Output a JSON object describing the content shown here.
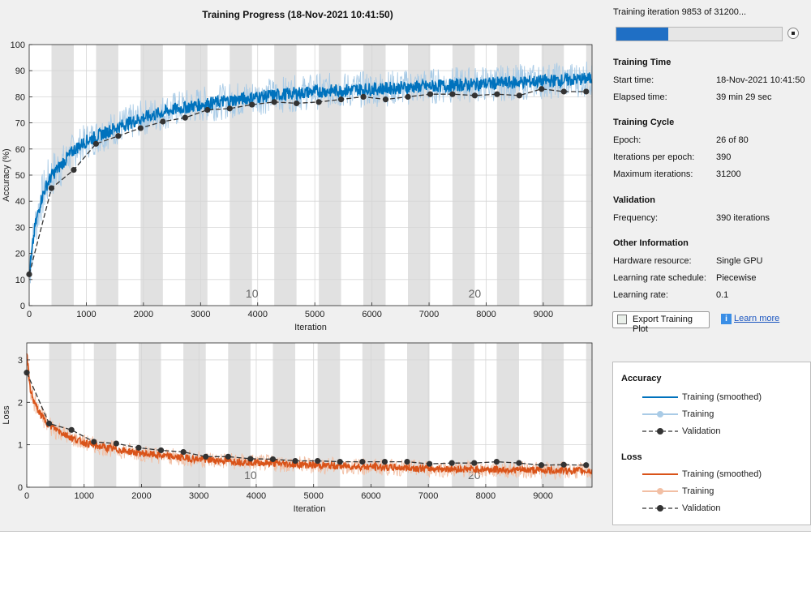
{
  "title": "Training Progress (18-Nov-2021 10:41:50)",
  "status_text": "Training iteration 9853 of 31200...",
  "progress_fraction": 0.316,
  "info_panel": {
    "training_time": {
      "header": "Training Time",
      "start_label": "Start time:",
      "start_value": "18-Nov-2021 10:41:50",
      "elapsed_label": "Elapsed time:",
      "elapsed_value": "39 min 29 sec"
    },
    "training_cycle": {
      "header": "Training Cycle",
      "epoch_label": "Epoch:",
      "epoch_value": "26 of 80",
      "ipe_label": "Iterations per epoch:",
      "ipe_value": "390",
      "max_label": "Maximum iterations:",
      "max_value": "31200"
    },
    "validation": {
      "header": "Validation",
      "freq_label": "Frequency:",
      "freq_value": "390 iterations"
    },
    "other": {
      "header": "Other Information",
      "hw_label": "Hardware resource:",
      "hw_value": "Single GPU",
      "lr_sched_label": "Learning rate schedule:",
      "lr_sched_value": "Piecewise",
      "lr_label": "Learning rate:",
      "lr_value": "0.1"
    }
  },
  "buttons": {
    "export_label": "Export Training Plot",
    "learn_more_label": "Learn more"
  },
  "legend": {
    "accuracy_header": "Accuracy",
    "loss_header": "Loss",
    "items": {
      "smoothed": "Training (smoothed)",
      "training": "Training",
      "validation": "Validation"
    }
  },
  "colors": {
    "acc_smoothed": "#0072bd",
    "acc_training": "#a9cbe6",
    "loss_smoothed": "#d95319",
    "loss_training": "#f2bfa4",
    "validation": "#333333",
    "progress": "#1f6fc5"
  },
  "icons": [
    "stop-icon",
    "export-plot-icon",
    "info-icon"
  ],
  "chart_data": [
    {
      "type": "line",
      "xlabel": "Iteration",
      "ylabel": "Accuracy (%)",
      "xlim": [
        0,
        9853
      ],
      "ylim": [
        0,
        100
      ],
      "xticks": [
        0,
        1000,
        2000,
        3000,
        4000,
        5000,
        6000,
        7000,
        8000,
        9000
      ],
      "yticks": [
        0,
        10,
        20,
        30,
        40,
        50,
        60,
        70,
        80,
        90,
        100
      ],
      "epoch_labels": [
        {
          "epoch": 10,
          "label": "10"
        },
        {
          "epoch": 20,
          "label": "20"
        }
      ],
      "iterations_per_epoch": 390,
      "smoothed": {
        "x": [
          0,
          100,
          200,
          300,
          400,
          600,
          800,
          1000,
          1200,
          1500,
          2000,
          2500,
          3000,
          3500,
          4000,
          4500,
          5000,
          5500,
          6000,
          6500,
          7000,
          7500,
          8000,
          8500,
          9000,
          9500,
          9853
        ],
        "y": [
          12,
          30,
          40,
          46,
          50,
          55,
          60,
          63,
          65,
          68,
          72,
          75,
          77,
          78.5,
          80,
          81,
          82,
          82.5,
          83,
          83.5,
          84,
          84.5,
          85,
          85.5,
          86,
          86.5,
          87
        ]
      },
      "validation": {
        "x": [
          0,
          390,
          780,
          1170,
          1560,
          1950,
          2340,
          2730,
          3120,
          3510,
          3900,
          4290,
          4680,
          5070,
          5460,
          5850,
          6240,
          6630,
          7020,
          7410,
          7800,
          8190,
          8580,
          8970,
          9360,
          9750
        ],
        "y": [
          12,
          45,
          52,
          62,
          65,
          68,
          70.5,
          72,
          75,
          75.5,
          77,
          78,
          77.5,
          78,
          79,
          80,
          79,
          80,
          81,
          81,
          80.5,
          81,
          80.5,
          83,
          82,
          82
        ]
      }
    },
    {
      "type": "line",
      "xlabel": "Iteration",
      "ylabel": "Loss",
      "xlim": [
        0,
        9853
      ],
      "ylim": [
        0,
        3.4
      ],
      "xticks": [
        0,
        1000,
        2000,
        3000,
        4000,
        5000,
        6000,
        7000,
        8000,
        9000
      ],
      "yticks": [
        0,
        1,
        2,
        3
      ],
      "epoch_labels": [
        {
          "epoch": 10,
          "label": "10"
        },
        {
          "epoch": 20,
          "label": "20"
        }
      ],
      "iterations_per_epoch": 390,
      "smoothed": {
        "x": [
          0,
          50,
          100,
          200,
          300,
          400,
          600,
          800,
          1000,
          1200,
          1500,
          2000,
          2500,
          3000,
          3500,
          4000,
          4500,
          5000,
          5500,
          6000,
          6500,
          7000,
          7500,
          8000,
          8500,
          9000,
          9500,
          9853
        ],
        "y": [
          3.2,
          2.4,
          2.1,
          1.8,
          1.6,
          1.45,
          1.3,
          1.15,
          1.05,
          0.98,
          0.9,
          0.8,
          0.72,
          0.66,
          0.62,
          0.58,
          0.55,
          0.52,
          0.5,
          0.48,
          0.46,
          0.44,
          0.43,
          0.42,
          0.41,
          0.4,
          0.39,
          0.38
        ]
      },
      "validation": {
        "x": [
          0,
          390,
          780,
          1170,
          1560,
          1950,
          2340,
          2730,
          3120,
          3510,
          3900,
          4290,
          4680,
          5070,
          5460,
          5850,
          6240,
          6630,
          7020,
          7410,
          7800,
          8190,
          8580,
          8970,
          9360,
          9750
        ],
        "y": [
          2.7,
          1.5,
          1.35,
          1.07,
          1.03,
          0.93,
          0.87,
          0.83,
          0.72,
          0.72,
          0.67,
          0.66,
          0.62,
          0.62,
          0.6,
          0.6,
          0.6,
          0.6,
          0.55,
          0.57,
          0.57,
          0.6,
          0.57,
          0.52,
          0.53,
          0.52
        ]
      }
    }
  ]
}
